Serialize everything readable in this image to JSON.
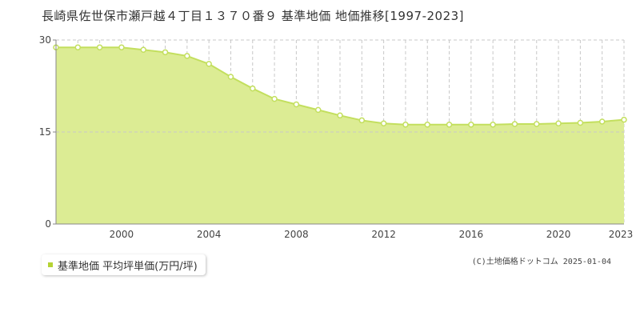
{
  "title": "長崎県佐世保市瀬戸越４丁目１３７０番９ 基準地価 地価推移[1997-2023]",
  "legend_label": "基準地価 平均坪単価(万円/坪)",
  "credit": "(C)土地価格ドットコム 2025-01-04",
  "colors": {
    "fill": "#dcec94",
    "line": "#c3df5e",
    "marker_fill": "#ffffff",
    "grid": "#c8c8c8",
    "axis": "#888888",
    "legend_swatch": "#b5d334"
  },
  "chart_data": {
    "type": "area",
    "x": [
      1997,
      1998,
      1999,
      2000,
      2001,
      2002,
      2003,
      2004,
      2005,
      2006,
      2007,
      2008,
      2009,
      2010,
      2011,
      2012,
      2013,
      2014,
      2015,
      2016,
      2017,
      2018,
      2019,
      2020,
      2021,
      2022,
      2023
    ],
    "values": [
      28.8,
      28.8,
      28.8,
      28.8,
      28.4,
      28.0,
      27.4,
      26.1,
      24.0,
      22.1,
      20.4,
      19.5,
      18.6,
      17.7,
      16.9,
      16.4,
      16.2,
      16.2,
      16.2,
      16.2,
      16.2,
      16.3,
      16.3,
      16.4,
      16.5,
      16.7,
      17.0
    ],
    "xlim": [
      1997,
      2023
    ],
    "ylim": [
      0,
      30
    ],
    "y_ticks": [
      0,
      15,
      30
    ],
    "x_tick_labels": [
      2000,
      2004,
      2008,
      2012,
      2016,
      2020,
      2023
    ],
    "grid": true
  }
}
